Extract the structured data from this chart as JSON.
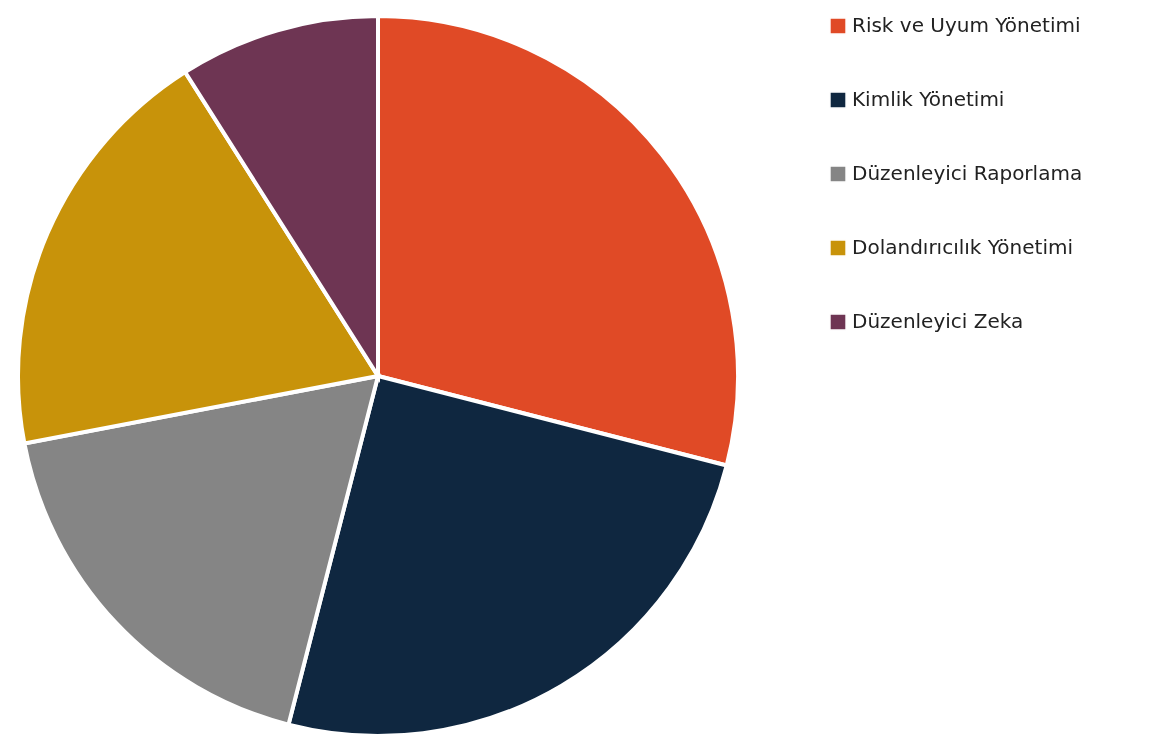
{
  "chart_data": {
    "type": "pie",
    "categories": [
      "Risk ve Uyum Yönetimi",
      "Kimlik Yönetimi",
      "Düzenleyici Raporlama",
      "Dolandırıcılık Yönetimi",
      "Düzenleyici Zeka"
    ],
    "values": [
      29,
      25,
      18,
      19,
      9
    ],
    "colors": [
      "#e04a26",
      "#0f2740",
      "#858585",
      "#c8930a",
      "#6e3553"
    ],
    "legend": "right"
  }
}
